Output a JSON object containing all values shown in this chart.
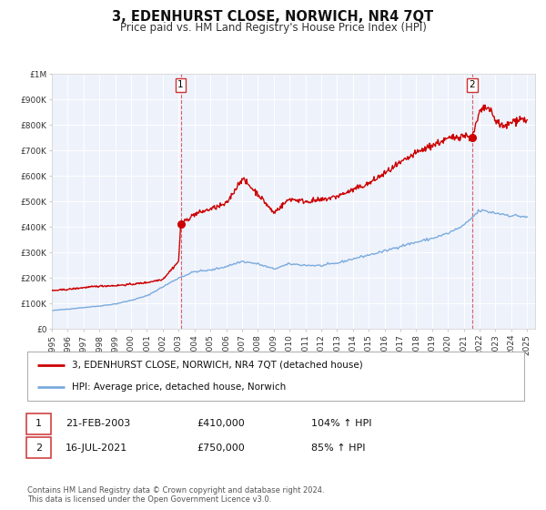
{
  "title": "3, EDENHURST CLOSE, NORWICH, NR4 7QT",
  "subtitle": "Price paid vs. HM Land Registry's House Price Index (HPI)",
  "ylim": [
    0,
    1000000
  ],
  "xlim_start": 1995.0,
  "xlim_end": 2025.5,
  "yticks": [
    0,
    100000,
    200000,
    300000,
    400000,
    500000,
    600000,
    700000,
    800000,
    900000,
    1000000
  ],
  "ytick_labels": [
    "£0",
    "£100K",
    "£200K",
    "£300K",
    "£400K",
    "£500K",
    "£600K",
    "£700K",
    "£800K",
    "£900K",
    "£1M"
  ],
  "xticks": [
    1995,
    1996,
    1997,
    1998,
    1999,
    2000,
    2001,
    2002,
    2003,
    2004,
    2005,
    2006,
    2007,
    2008,
    2009,
    2010,
    2011,
    2012,
    2013,
    2014,
    2015,
    2016,
    2017,
    2018,
    2019,
    2020,
    2021,
    2022,
    2023,
    2024,
    2025
  ],
  "red_line_color": "#cc0000",
  "blue_line_color": "#7aaadd",
  "sale1_x": 2003.13,
  "sale1_y": 410000,
  "sale2_x": 2021.54,
  "sale2_y": 750000,
  "plot_bg_color": "#eef2fb",
  "legend_label_red": "3, EDENHURST CLOSE, NORWICH, NR4 7QT (detached house)",
  "legend_label_blue": "HPI: Average price, detached house, Norwich",
  "table_row1": [
    "1",
    "21-FEB-2003",
    "£410,000",
    "104% ↑ HPI"
  ],
  "table_row2": [
    "2",
    "16-JUL-2021",
    "£750,000",
    "85% ↑ HPI"
  ],
  "footer_text": "Contains HM Land Registry data © Crown copyright and database right 2024.\nThis data is licensed under the Open Government Licence v3.0.",
  "title_fontsize": 10.5,
  "subtitle_fontsize": 8.5,
  "tick_fontsize": 6.5,
  "legend_fontsize": 7.5,
  "table_fontsize": 8,
  "footer_fontsize": 6
}
